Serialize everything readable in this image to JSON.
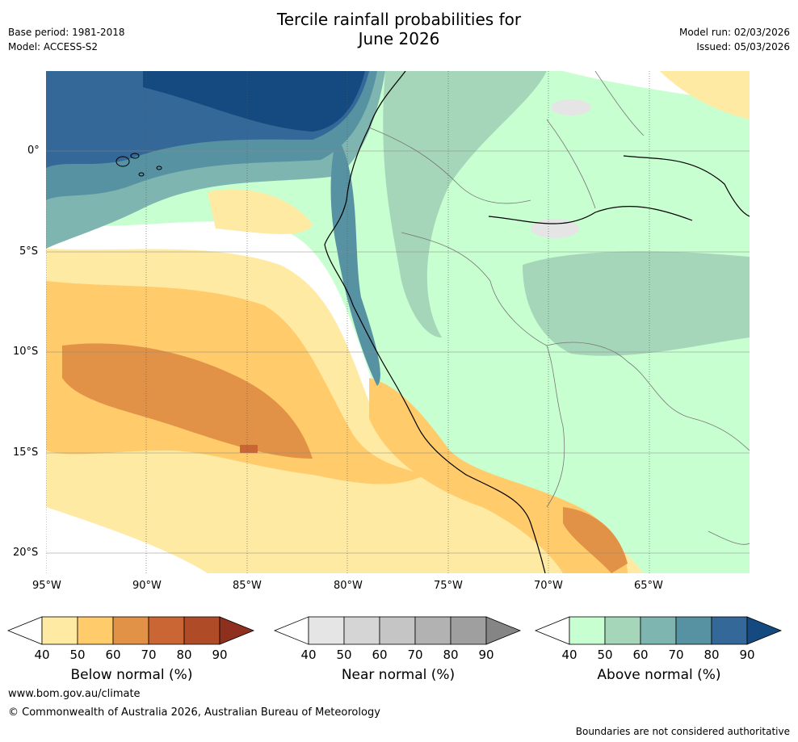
{
  "header": {
    "title_line1": "Tercile rainfall probabilities for",
    "title_line2": "June 2026",
    "base_period": "Base period: 1981-2018",
    "model": "Model: ACCESS-S2",
    "model_run": "Model run: 02/03/2026",
    "issued": "Issued: 05/03/2026"
  },
  "axes": {
    "lat_labels": [
      "0°",
      "5°S",
      "10°S",
      "15°S",
      "20°S"
    ],
    "lon_labels": [
      "95°W",
      "90°W",
      "85°W",
      "80°W",
      "75°W",
      "70°W",
      "65°W"
    ]
  },
  "legends": [
    {
      "title": "Below normal (%)",
      "ticks": [
        "40",
        "50",
        "60",
        "70",
        "80",
        "90"
      ],
      "colors": [
        "#ffffff",
        "#ffeaa3",
        "#ffcb6b",
        "#e19246",
        "#ca6534",
        "#b04b27",
        "#8f2f1d"
      ]
    },
    {
      "title": "Near normal (%)",
      "ticks": [
        "40",
        "50",
        "60",
        "70",
        "80",
        "90"
      ],
      "colors": [
        "#ffffff",
        "#e5e5e5",
        "#d5d5d5",
        "#c5c5c5",
        "#b2b2b2",
        "#9f9f9f",
        "#858585"
      ]
    },
    {
      "title": "Above normal (%)",
      "ticks": [
        "40",
        "50",
        "60",
        "70",
        "80",
        "90"
      ],
      "colors": [
        "#ffffff",
        "#c8ffd0",
        "#a5d6b9",
        "#7fb5b0",
        "#5792a2",
        "#336898",
        "#154a80"
      ]
    }
  ],
  "footer": {
    "url": "www.bom.gov.au/climate",
    "copyright": "© Commonwealth of Australia 2026, Australian Bureau of Meteorology",
    "disclaimer": "Boundaries are not considered authoritative"
  }
}
